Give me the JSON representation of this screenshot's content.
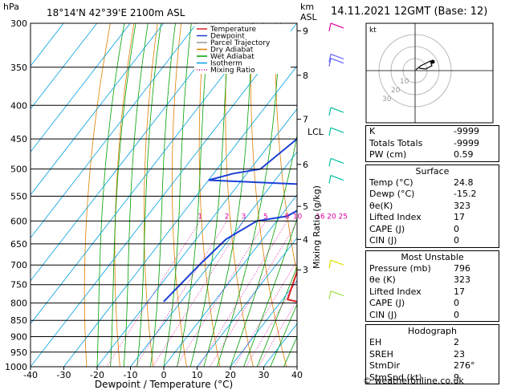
{
  "header": {
    "location": "18°14'N  42°39'E  2100m  ASL",
    "datetime": "14.11.2021  12GMT  (Base: 12)",
    "unit_hpa": "hPa",
    "unit_km": "km",
    "unit_asl": "ASL",
    "lcl": "LCL"
  },
  "axes": {
    "xlabel": "Dewpoint / Temperature (°C)",
    "ylabel_right": "Mixing Ratio (g/kg)",
    "x_ticks": [
      -40,
      -30,
      -20,
      -10,
      0,
      10,
      20,
      30,
      40
    ],
    "p_ticks": [
      300,
      350,
      400,
      450,
      500,
      550,
      600,
      650,
      700,
      750,
      800,
      850,
      900,
      950,
      1000
    ],
    "km_ticks": [
      {
        "km": "9",
        "p": 308
      },
      {
        "km": "8",
        "p": 360
      },
      {
        "km": "7",
        "p": 420
      },
      {
        "km": "6",
        "p": 492
      },
      {
        "km": "5",
        "p": 570
      },
      {
        "km": "4",
        "p": 640
      },
      {
        "km": "3",
        "p": 712
      }
    ],
    "mixing_ratio_labels": [
      "1",
      "2",
      "3",
      "5",
      "8",
      "10",
      "16",
      "20",
      "25"
    ],
    "mixing_ratio_values": [
      1,
      2,
      3,
      5,
      8,
      10,
      16,
      20,
      25
    ]
  },
  "legend": [
    {
      "label": "Temperature",
      "color": "#e02020",
      "dash": "solid"
    },
    {
      "label": "Dewpoint",
      "color": "#1a3fd6",
      "dash": "solid"
    },
    {
      "label": "Parcel Trajectory",
      "color": "#999999",
      "dash": "solid"
    },
    {
      "label": "Dry Adiabat",
      "color": "#e08000",
      "dash": "solid"
    },
    {
      "label": "Wet Adiabat",
      "color": "#00a000",
      "dash": "solid"
    },
    {
      "label": "Isotherm",
      "color": "#00a0e0",
      "dash": "solid"
    },
    {
      "label": "Mixing Ratio",
      "color": "#e000a0",
      "dash": "dotted"
    }
  ],
  "chart_data": {
    "type": "line",
    "title": "",
    "xlabel": "Dewpoint / Temperature (°C)",
    "ylabel": "hPa",
    "xlim": [
      -40,
      40
    ],
    "ylim": [
      1000,
      300
    ],
    "series": [
      {
        "name": "Temperature",
        "color": "#e02020",
        "points": [
          [
            24.8,
            796
          ],
          [
            21.5,
            790
          ],
          [
            17,
            700
          ],
          [
            14,
            650
          ],
          [
            11,
            600
          ],
          [
            10,
            575
          ],
          [
            9,
            550
          ],
          [
            11,
            530
          ],
          [
            15,
            512
          ],
          [
            10,
            470
          ],
          [
            3,
            420
          ],
          [
            -4,
            370
          ],
          [
            -11,
            340
          ],
          [
            -16,
            300
          ]
        ]
      },
      {
        "name": "Dewpoint",
        "color": "#1a3fd6",
        "points": [
          [
            -15.2,
            796
          ],
          [
            -13,
            700
          ],
          [
            -11,
            640
          ],
          [
            -6,
            600
          ],
          [
            2,
            590
          ],
          [
            5,
            570
          ],
          [
            3,
            530
          ],
          [
            1,
            528
          ],
          [
            -30,
            520
          ],
          [
            -24,
            508
          ],
          [
            -17,
            500
          ],
          [
            -13,
            450
          ],
          [
            -11,
            400
          ],
          [
            -9,
            350
          ],
          [
            -20,
            300
          ]
        ]
      },
      {
        "name": "Parcel Trajectory",
        "color": "#999999",
        "points": [
          [
            24.8,
            796
          ],
          [
            20,
            700
          ],
          [
            16,
            640
          ],
          [
            14,
            600
          ],
          [
            12,
            560
          ],
          [
            8,
            510
          ],
          [
            4,
            470
          ],
          [
            0,
            430
          ],
          [
            -4,
            390
          ],
          [
            -9,
            350
          ],
          [
            -14,
            300
          ]
        ]
      }
    ]
  },
  "hodograph": {
    "label": "kt",
    "ring_labels": [
      "10",
      "20",
      "30"
    ]
  },
  "indices": {
    "rows": [
      {
        "k": "K",
        "v": "-9999"
      },
      {
        "k": "Totals Totals",
        "v": "-9999"
      },
      {
        "k": "PW (cm)",
        "v": "0.59"
      }
    ]
  },
  "surface": {
    "title": "Surface",
    "rows": [
      {
        "k": "Temp (°C)",
        "v": "24.8"
      },
      {
        "k": "Dewp (°C)",
        "v": "-15.2"
      },
      {
        "k": "θe(K)",
        "v": "323"
      },
      {
        "k": "Lifted Index",
        "v": "17"
      },
      {
        "k": "CAPE (J)",
        "v": "0"
      },
      {
        "k": "CIN (J)",
        "v": "0"
      }
    ]
  },
  "most_unstable": {
    "title": "Most Unstable",
    "rows": [
      {
        "k": "Pressure (mb)",
        "v": "796"
      },
      {
        "k": "θe (K)",
        "v": "323"
      },
      {
        "k": "Lifted Index",
        "v": "17"
      },
      {
        "k": "CAPE (J)",
        "v": "0"
      },
      {
        "k": "CIN (J)",
        "v": "0"
      }
    ]
  },
  "hodo_params": {
    "title": "Hodograph",
    "rows": [
      {
        "k": "EH",
        "v": "2"
      },
      {
        "k": "SREH",
        "v": "23"
      },
      {
        "k": "StmDir",
        "v": "276°"
      },
      {
        "k": "StmSpd (kt)",
        "v": "9"
      }
    ]
  },
  "copyright": "© weatheronline.co.uk"
}
